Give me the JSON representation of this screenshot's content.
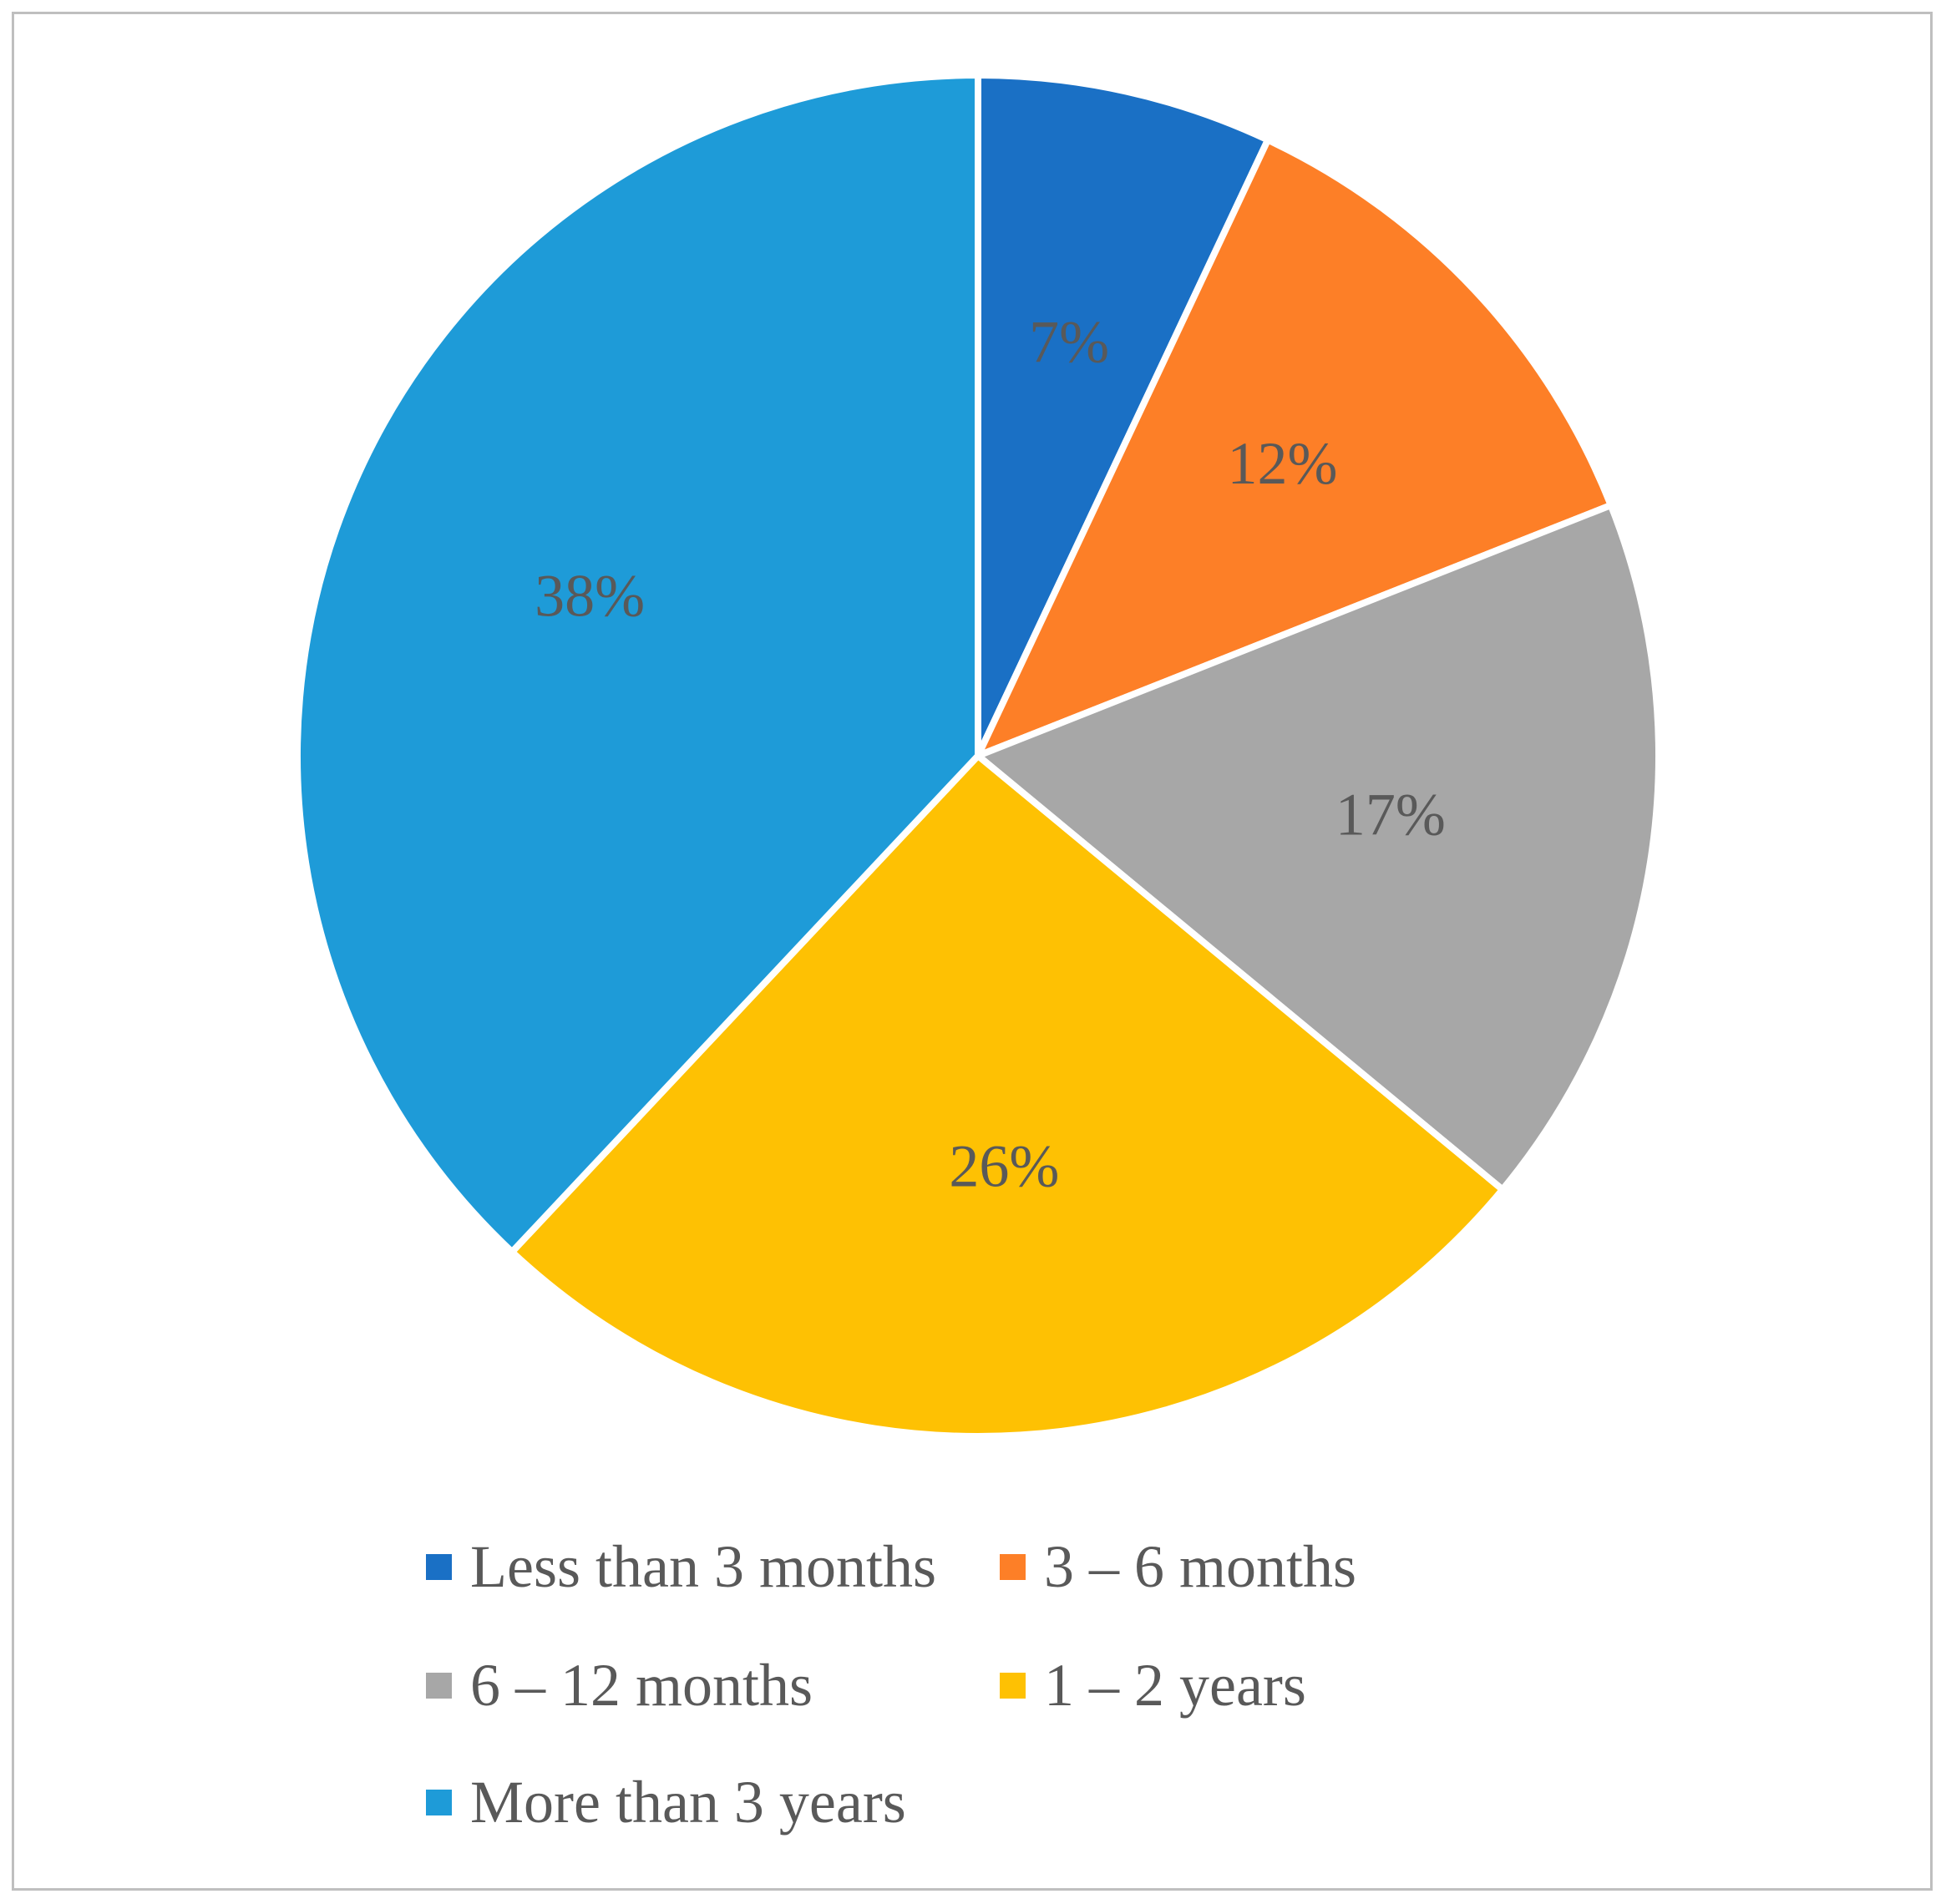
{
  "chart_data": {
    "type": "pie",
    "title": "",
    "start_angle_deg": 0,
    "direction": "clockwise",
    "legend_position": "bottom",
    "categories": [
      "Less than 3 months",
      "3 – 6 months",
      "6 – 12 months",
      "1 – 2 years",
      "More than 3 years"
    ],
    "values": [
      7,
      12,
      17,
      26,
      38
    ],
    "labels": [
      "7%",
      "12%",
      "17%",
      "26%",
      "38%"
    ],
    "colors": [
      "#1a70c5",
      "#fd7f27",
      "#a7a7a7",
      "#fec103",
      "#1e9bd8"
    ]
  }
}
